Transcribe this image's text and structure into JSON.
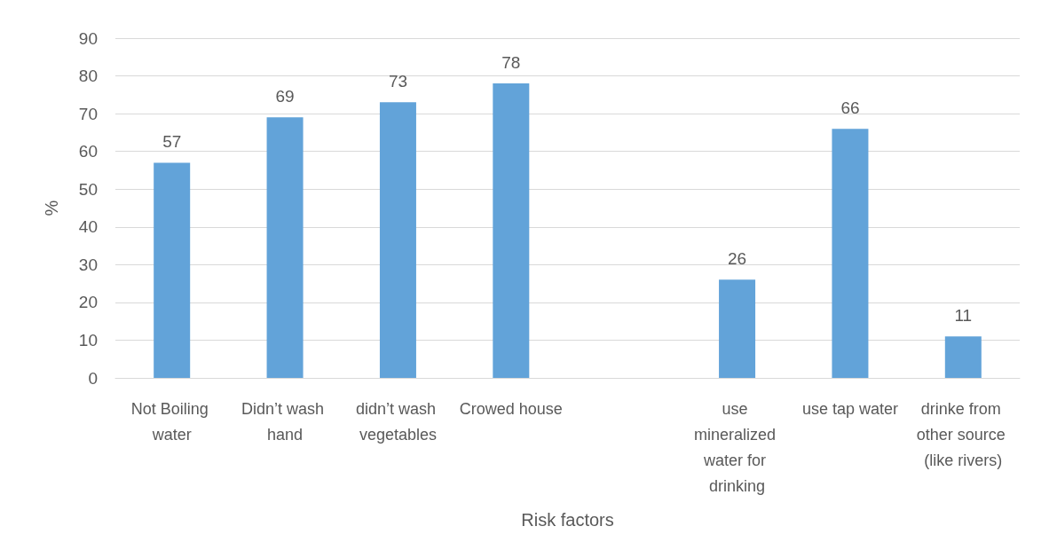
{
  "chart_data": {
    "type": "bar",
    "categories": [
      "Not Boiling water",
      "Didn’t wash hand",
      "didn’t wash vegetables",
      "Crowed house",
      null,
      "use mineralized water for drinking",
      "use tap water",
      "drinke from other source (like rivers)"
    ],
    "values": [
      57,
      69,
      73,
      78,
      null,
      26,
      66,
      11
    ],
    "color": "#62a3d9",
    "xlabel": "Risk factors",
    "ylabel": "%",
    "ylim": [
      0,
      90
    ],
    "yticks": [
      0,
      10,
      20,
      30,
      40,
      50,
      60,
      70,
      80,
      90
    ],
    "grid": "y",
    "data_labels": true
  }
}
